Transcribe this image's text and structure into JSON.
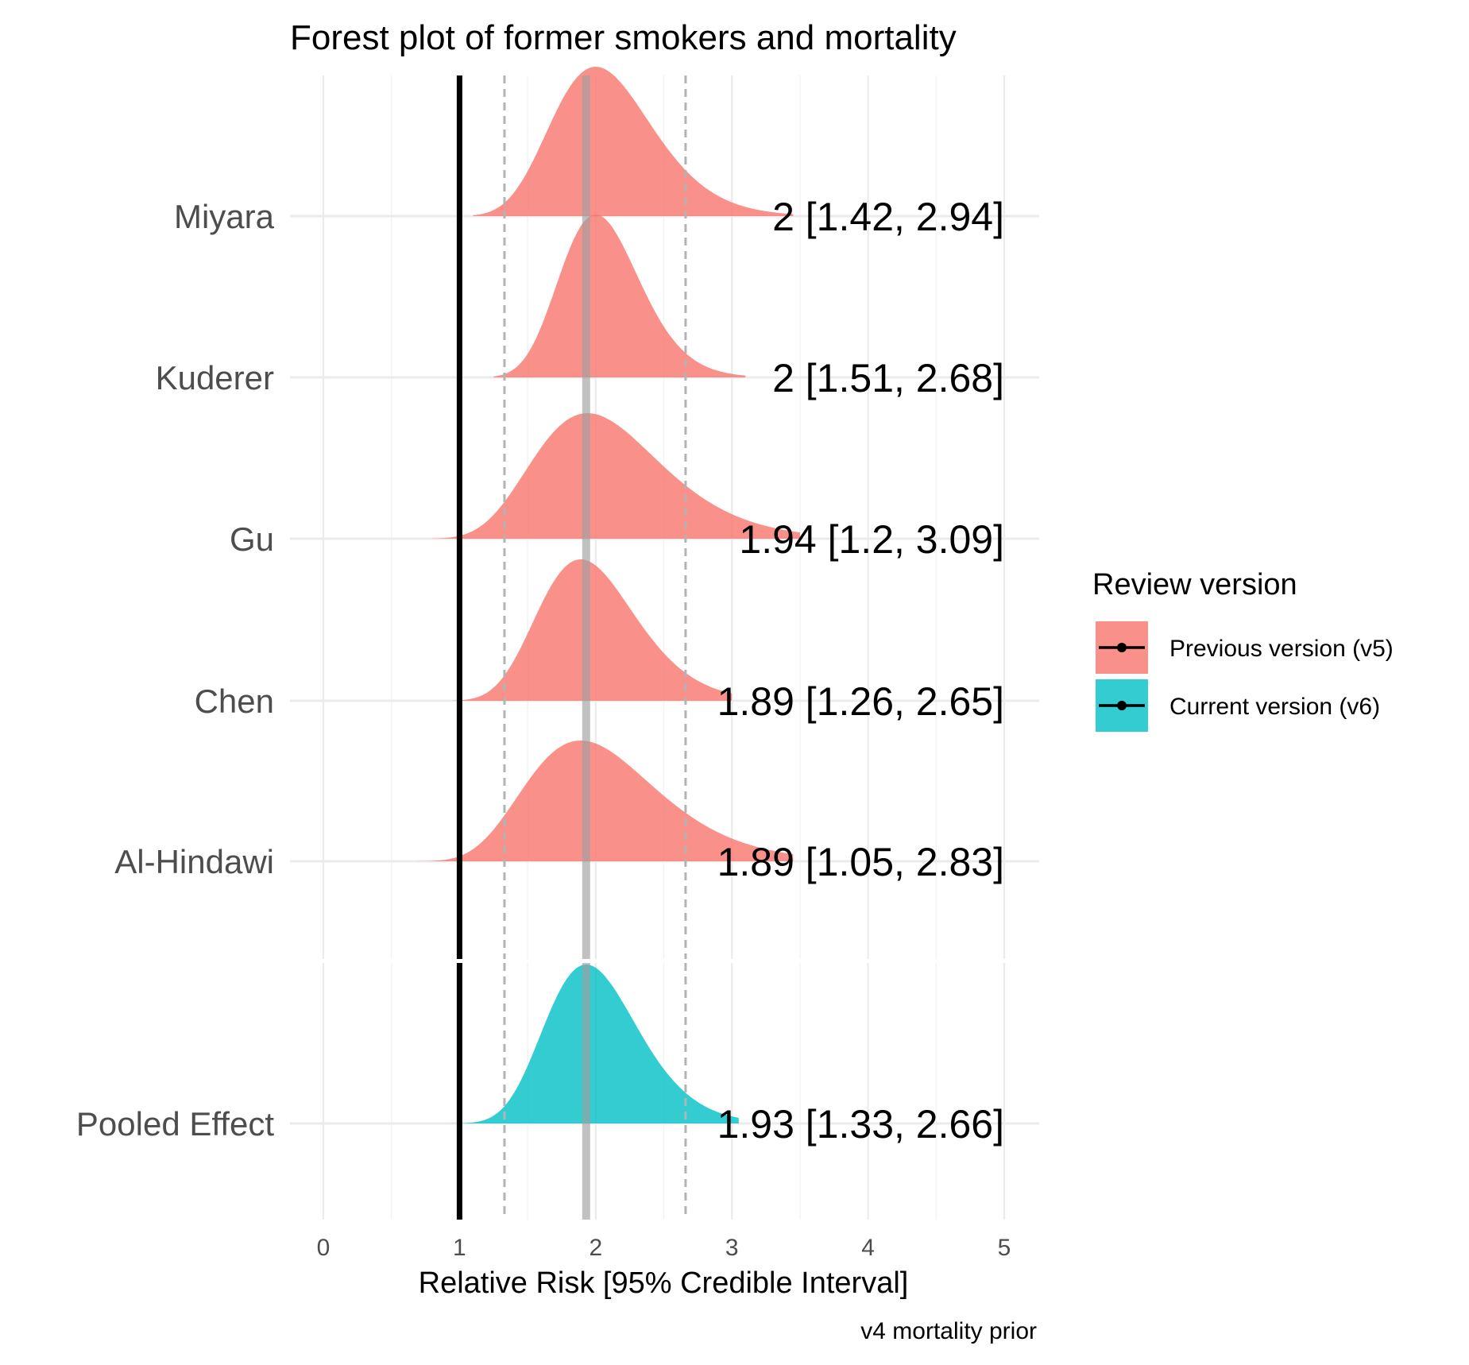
{
  "chart_data": {
    "type": "area",
    "title": "Forest plot of former smokers and mortality",
    "xlabel": "Relative Risk [95% Credible Interval]",
    "caption": "v4 mortality prior",
    "xlim": [
      0,
      5
    ],
    "x_ticks": [
      0,
      1,
      2,
      3,
      4,
      5
    ],
    "null_line": 1,
    "pooled_estimate": 1.93,
    "pooled_interval": [
      1.33,
      2.66
    ],
    "grid": true,
    "legend_position": "right",
    "legend": {
      "title": "Review version",
      "entries": [
        {
          "label": "Previous version (v5)",
          "color": "#f8766d"
        },
        {
          "label": "Current version (v6)",
          "color": "#00bfc4"
        }
      ]
    },
    "studies": [
      {
        "name": "Miyara",
        "estimate": 2,
        "lower": 1.42,
        "upper": 2.94,
        "label": "2 [1.42, 2.94]",
        "version": "Previous version (v5)",
        "density_range": [
          1.1,
          3.45
        ]
      },
      {
        "name": "Kuderer",
        "estimate": 2,
        "lower": 1.51,
        "upper": 2.68,
        "label": "2 [1.51, 2.68]",
        "version": "Previous version (v5)",
        "density_range": [
          1.25,
          3.1
        ]
      },
      {
        "name": "Gu",
        "estimate": 1.94,
        "lower": 1.2,
        "upper": 3.09,
        "label": "1.94 [1.2, 3.09]",
        "version": "Previous version (v5)",
        "density_range": [
          0.8,
          3.5
        ]
      },
      {
        "name": "Chen",
        "estimate": 1.89,
        "lower": 1.26,
        "upper": 2.65,
        "label": "1.89 [1.26, 2.65]",
        "version": "Previous version (v5)",
        "density_range": [
          0.95,
          3.0
        ]
      },
      {
        "name": "Al-Hindawi",
        "estimate": 1.89,
        "lower": 1.05,
        "upper": 2.83,
        "label": "1.89 [1.05, 2.83]",
        "version": "Previous version (v5)",
        "density_range": [
          0.65,
          3.45
        ]
      },
      {
        "name": "Pooled Effect",
        "estimate": 1.93,
        "lower": 1.33,
        "upper": 2.66,
        "label": "1.93 [1.33, 2.66]",
        "version": "Current version (v6)",
        "density_range": [
          0.9,
          3.05
        ]
      }
    ]
  }
}
